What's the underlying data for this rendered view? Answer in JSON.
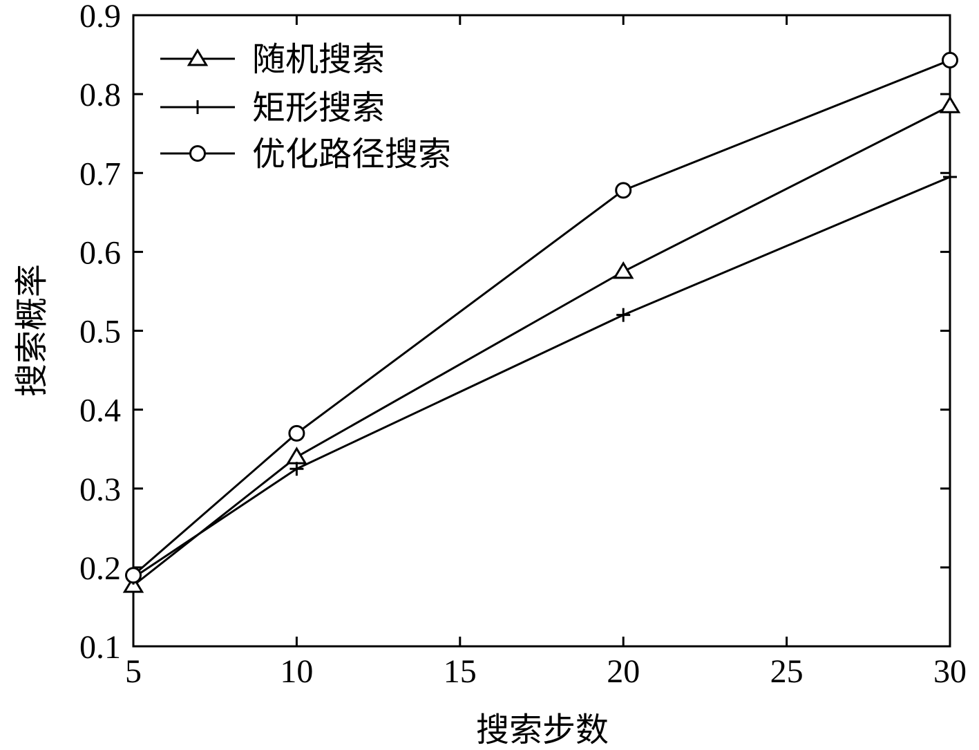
{
  "chart_data": {
    "type": "line",
    "title": "",
    "xlabel": "搜索步数",
    "ylabel": "搜索概率",
    "xlim": [
      5,
      30
    ],
    "ylim": [
      0.1,
      0.9
    ],
    "x_ticks": [
      "5",
      "10",
      "15",
      "20",
      "25",
      "30"
    ],
    "y_ticks": [
      "0.1",
      "0.2",
      "0.3",
      "0.4",
      "0.5",
      "0.6",
      "0.7",
      "0.8",
      "0.9"
    ],
    "grid": false,
    "legend_position": "top-left",
    "x": [
      5,
      10,
      20,
      30
    ],
    "series": [
      {
        "name": "随机搜索",
        "marker": "triangle",
        "values": [
          0.177,
          0.34,
          0.575,
          0.785
        ]
      },
      {
        "name": "矩形搜索",
        "marker": "plus",
        "values": [
          0.187,
          0.325,
          0.52,
          0.695
        ]
      },
      {
        "name": "优化路径搜索",
        "marker": "circle",
        "values": [
          0.19,
          0.37,
          0.678,
          0.843
        ]
      }
    ],
    "line_color": "#000000"
  }
}
